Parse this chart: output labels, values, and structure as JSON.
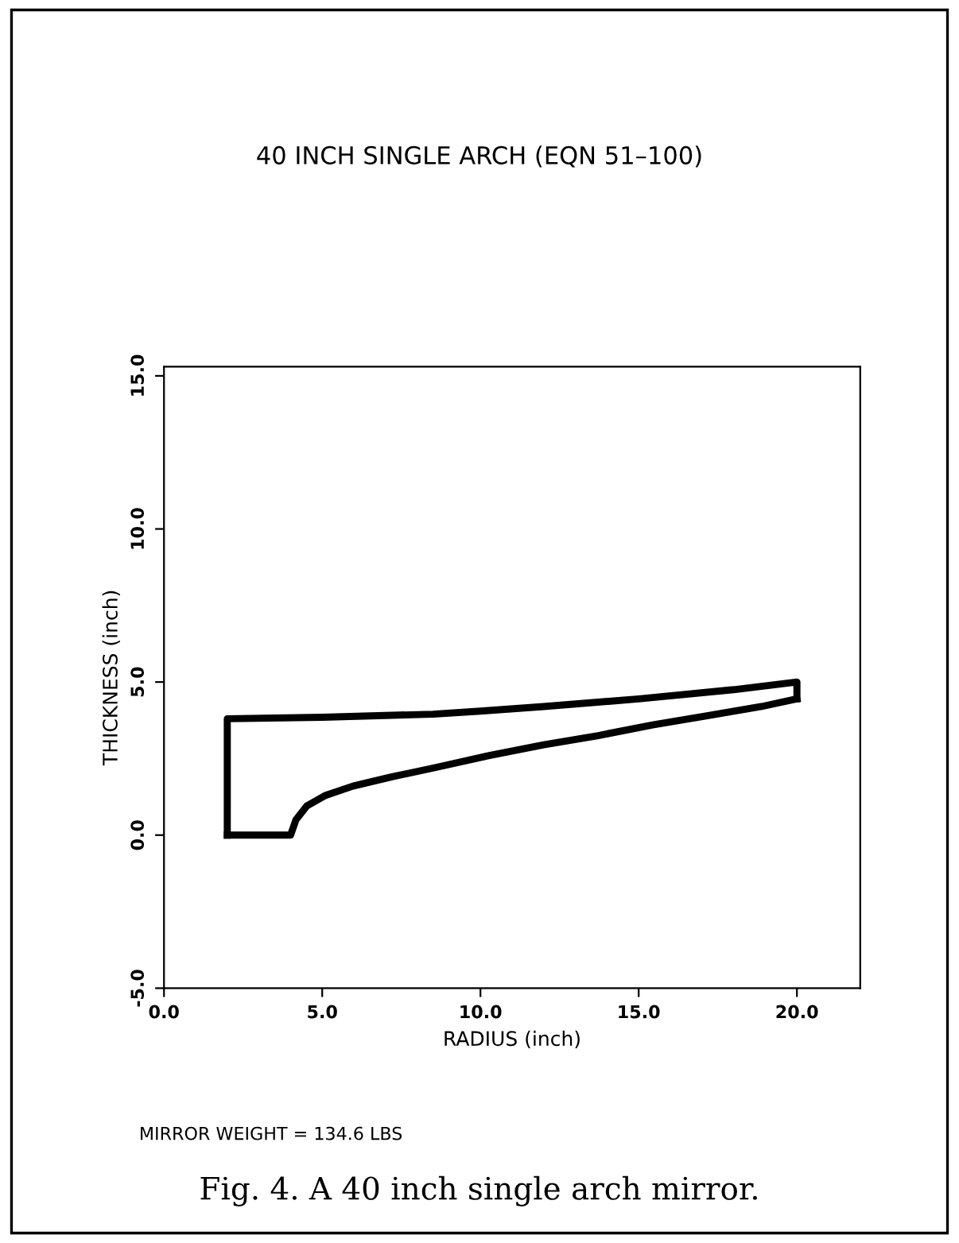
{
  "chart_data": {
    "type": "line",
    "title": "40 INCH SINGLE ARCH (EQN 51–100)",
    "xlabel": "RADIUS (inch)",
    "ylabel": "THICKNESS (inch)",
    "annotations": [
      "MIRROR WEIGHT = 134.6 LBS",
      "Fig. 4. A 40 inch single arch mirror."
    ],
    "series": [
      {
        "color": "#000000",
        "x": [
          2.0,
          2.0,
          5.0,
          8.5,
          10.0,
          12.0,
          15.0,
          18.0,
          20.0,
          20.0
        ],
        "values": [
          0.0,
          3.8,
          3.85,
          3.95,
          4.05,
          4.2,
          4.45,
          4.75,
          5.0,
          4.45
        ]
      },
      {
        "color": "#000000",
        "x": [
          2.0,
          4.0,
          4.17,
          4.51,
          5.11,
          5.97,
          7.18,
          8.55,
          10.28,
          12.0,
          13.72,
          15.44,
          17.16,
          18.88,
          20.0
        ],
        "values": [
          0.0,
          0.0,
          0.5,
          0.95,
          1.3,
          1.6,
          1.9,
          2.2,
          2.6,
          2.95,
          3.25,
          3.6,
          3.9,
          4.2,
          4.45
        ]
      }
    ],
    "xlim": [
      0,
      22
    ],
    "ylim": [
      -5,
      15.3
    ],
    "xticks": [
      {
        "value": 0,
        "label": "0.0"
      },
      {
        "value": 5,
        "label": "5.0"
      },
      {
        "value": 10,
        "label": "10.0"
      },
      {
        "value": 15,
        "label": "15.0"
      },
      {
        "value": 20,
        "label": "20.0"
      }
    ],
    "yticks": [
      {
        "value": -5,
        "label": "-5.0"
      },
      {
        "value": 0,
        "label": "0.0"
      },
      {
        "value": 5,
        "label": "5.0"
      },
      {
        "value": 10,
        "label": "10.0"
      },
      {
        "value": 15,
        "label": "15.0"
      }
    ],
    "grid": false,
    "legend": false,
    "marker": "none",
    "line_style": "solid"
  }
}
